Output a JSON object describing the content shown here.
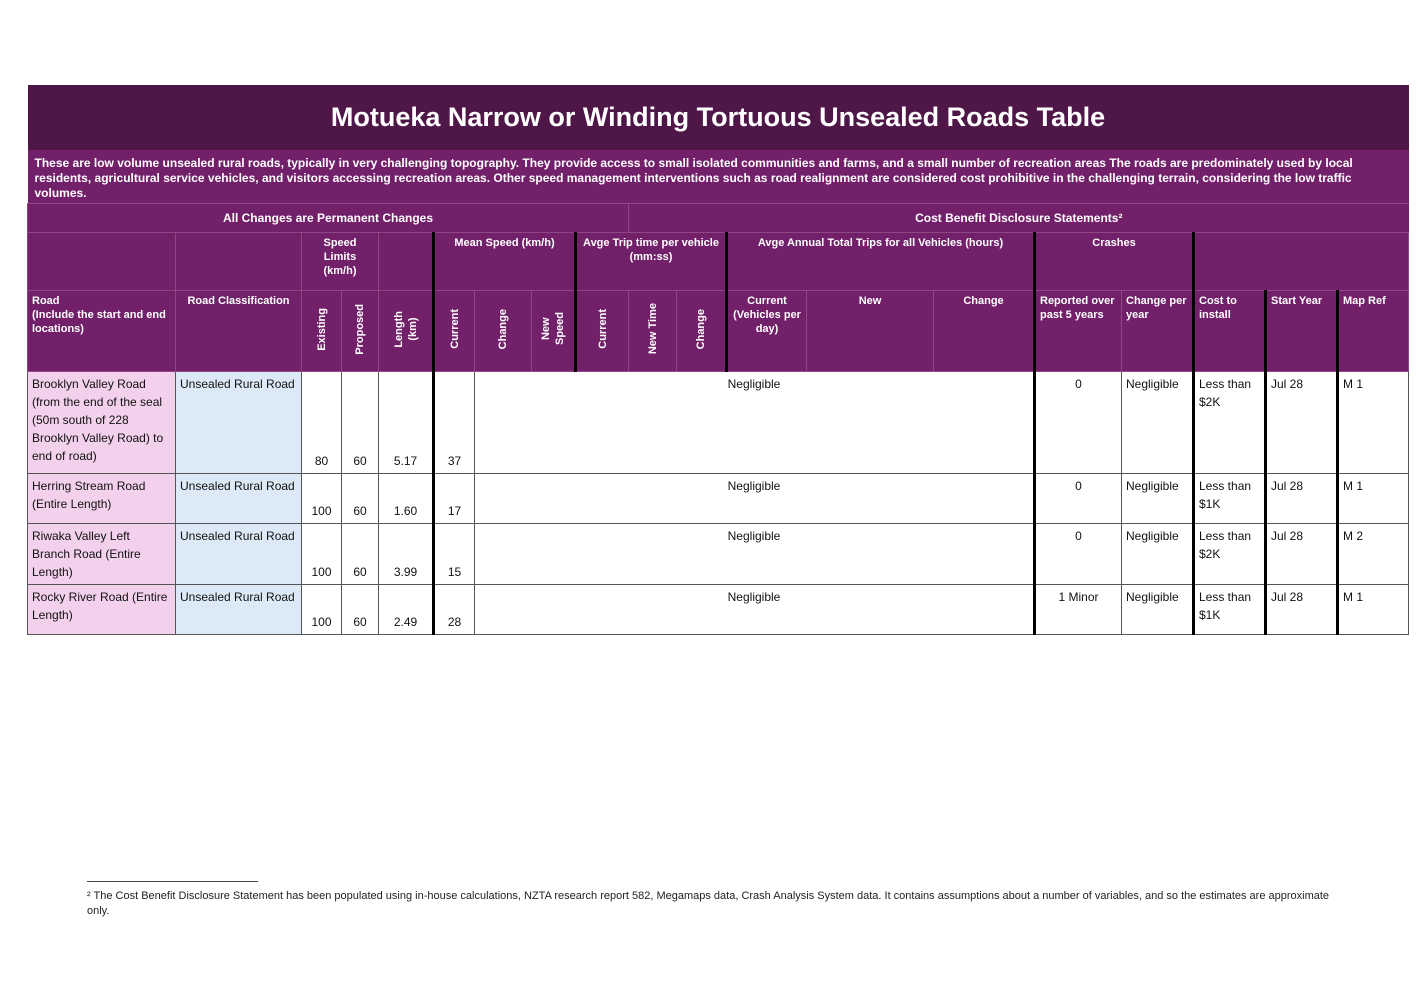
{
  "title": "Motueka Narrow or Winding Tortuous Unsealed Roads Table",
  "description": "These are low volume unsealed rural roads, typically in very challenging topography.  They provide access to small isolated communities and farms, and a small number of recreation areas The roads are predominately used by local residents, agricultural service vehicles, and visitors accessing recreation areas. Other speed management interventions such as road realignment are considered cost prohibitive in the challenging terrain, considering the low traffic volumes.",
  "sections": [
    "All Changes are Permanent Changes",
    "Cost Benefit Disclosure Statements²"
  ],
  "groups": [
    "Speed Limits (km/h)",
    "Mean Speed (km/h)",
    "Avge Trip time per vehicle (mm:ss)",
    "Avge Annual Total Trips for all Vehicles (hours)",
    "Crashes"
  ],
  "columns": [
    "Road\n(Include the start and end locations)",
    "Road Classification",
    "Existing",
    "Proposed",
    "Length\n(km)",
    "Current",
    "Change",
    "New\nSpeed",
    "Current",
    "New Time",
    "Change",
    "Current (Vehicles per day)",
    "New",
    "Change",
    "Reported over past 5 years",
    "Change per year",
    "Cost to install",
    "Start Year",
    "Map Ref"
  ],
  "rows": [
    [
      "Brooklyn Valley Road (from the end of the seal (50m south of 228 Brooklyn Valley Road) to end of road)",
      "Unsealed Rural Road",
      "80",
      "60",
      "5.17",
      "37",
      "Negligible",
      "0",
      "Negligible",
      "Less than $2K",
      "Jul 28",
      "M 1"
    ],
    [
      "Herring Stream Road (Entire Length)",
      "Unsealed Rural Road",
      "100",
      "60",
      "1.60",
      "17",
      "Negligible",
      "0",
      "Negligible",
      "Less than $1K",
      "Jul 28",
      "M 1"
    ],
    [
      "Riwaka Valley Left Branch Road (Entire Length)",
      "Unsealed Rural Road",
      "100",
      "60",
      "3.99",
      "15",
      "Negligible",
      "0",
      "Negligible",
      "Less than $2K",
      "Jul 28",
      "M 2"
    ],
    [
      "Rocky River Road (Entire Length)",
      "Unsealed Rural Road",
      "100",
      "60",
      "2.49",
      "28",
      "Negligible",
      "1 Minor",
      "Negligible",
      "Less than $1K",
      "Jul 28",
      "M 1"
    ]
  ],
  "footnote": "² The Cost Benefit Disclosure Statement has been populated using in-house calculations, NZTA research report 582, Megamaps data, Crash Analysis System data. It contains assumptions about a number of variables, and so the estimates are approximate only."
}
